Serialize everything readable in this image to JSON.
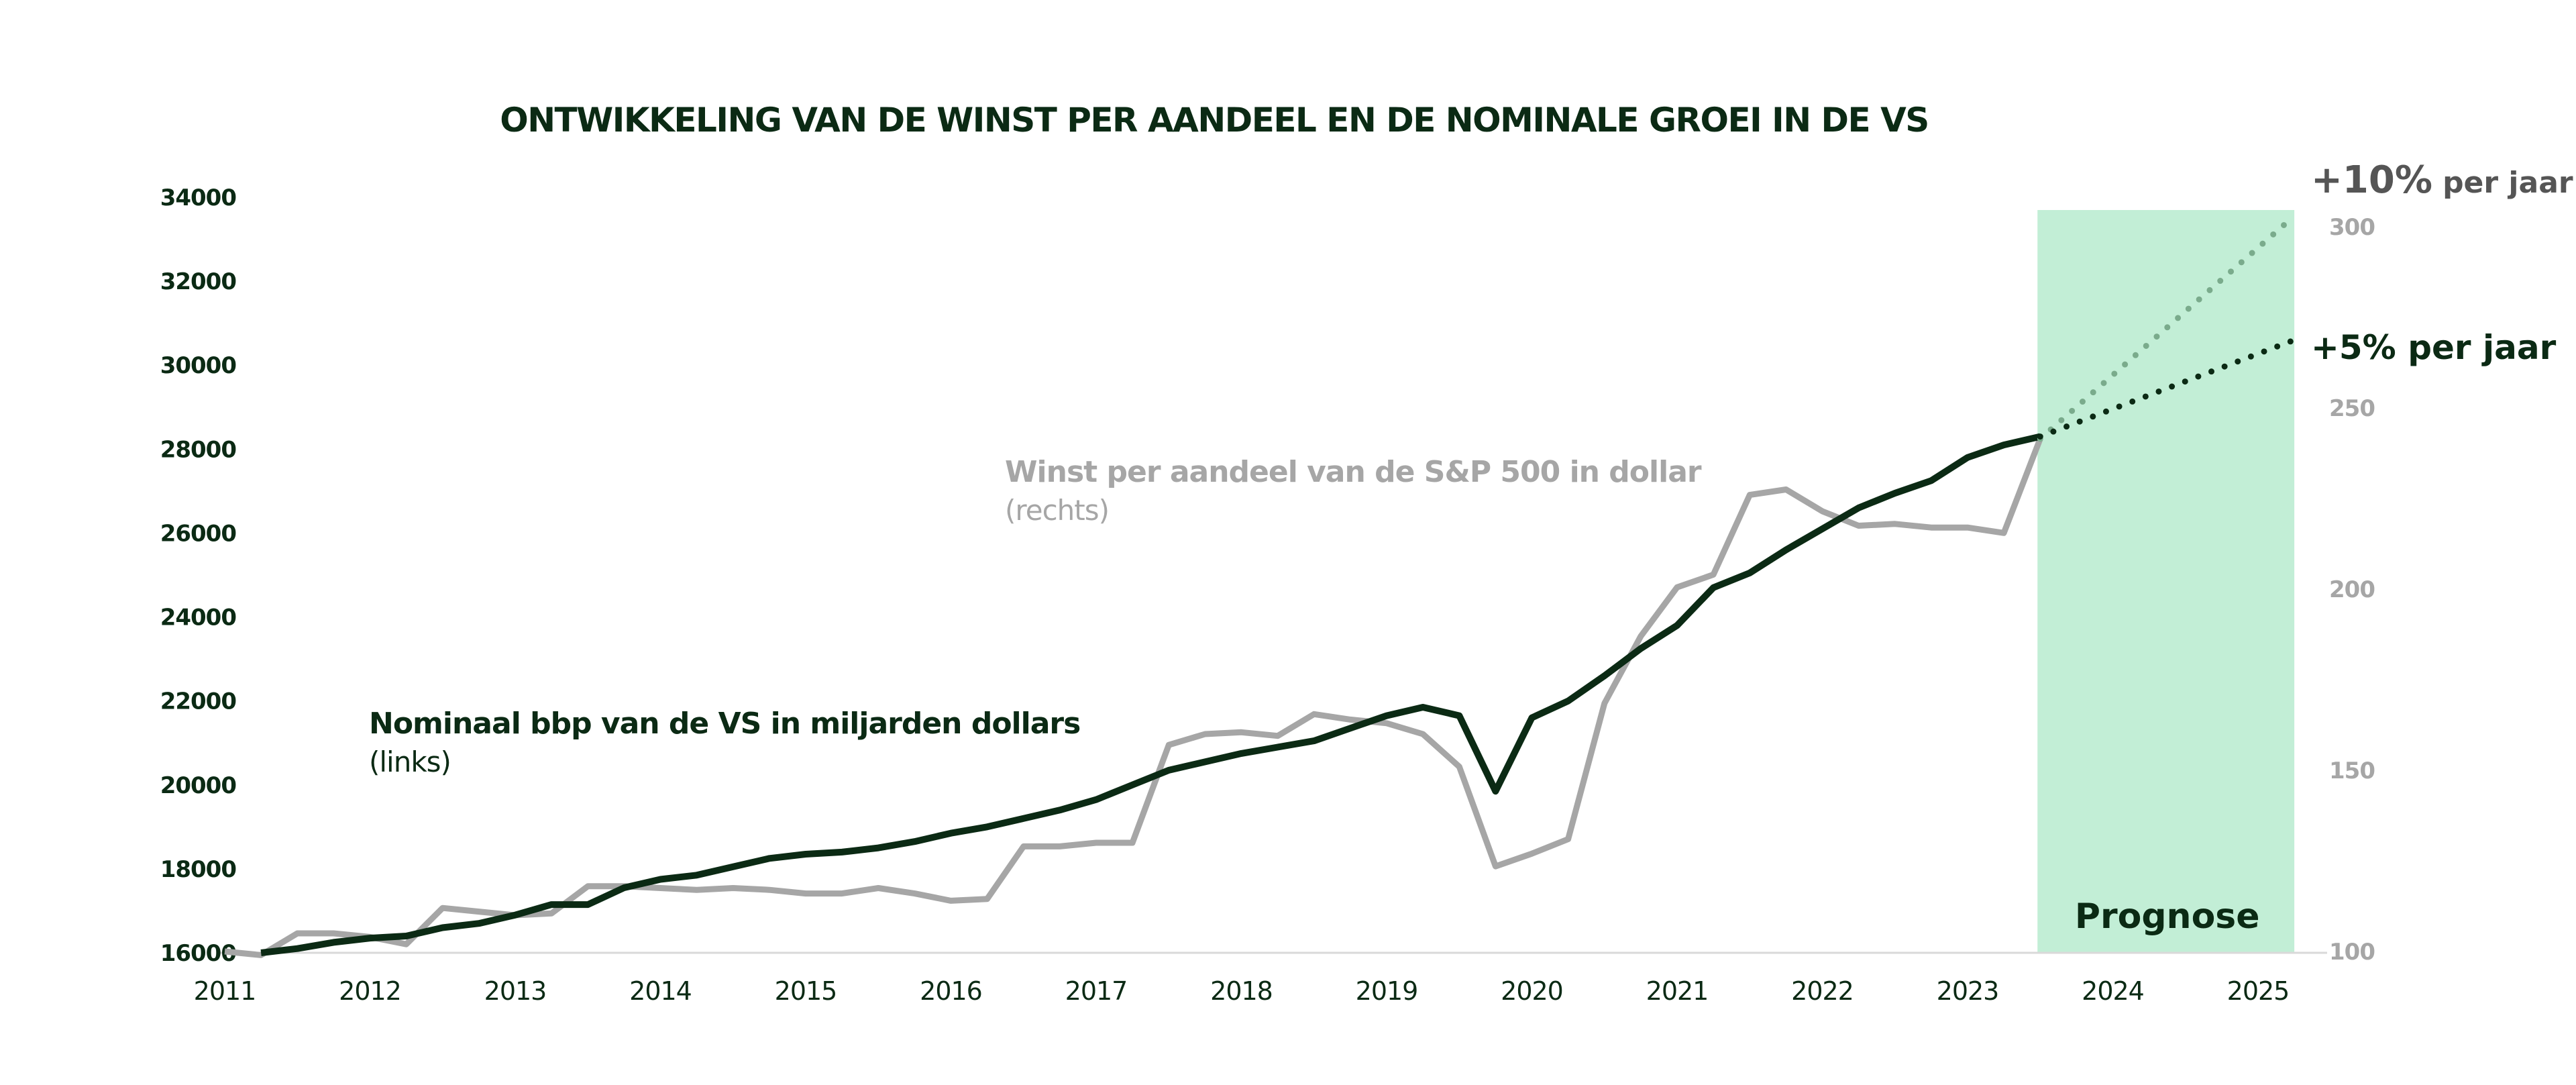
{
  "chart_data": {
    "type": "line",
    "title": "ONTWIKKELING VAN DE WINST PER AANDEEL EN DE NOMINALE GROEI IN DE VS",
    "x_ticks": [
      "2011",
      "2012",
      "2013",
      "2014",
      "2015",
      "2016",
      "2017",
      "2018",
      "2019",
      "2020",
      "2021",
      "2022",
      "2023",
      "2024",
      "2025"
    ],
    "xlim": [
      2011,
      2025.25
    ],
    "y_left": {
      "ticks": [
        "16000",
        "18000",
        "20000",
        "22000",
        "24000",
        "26000",
        "28000",
        "30000",
        "32000",
        "34000"
      ],
      "ylim": [
        16000,
        34000
      ]
    },
    "y_right": {
      "ticks": [
        "100",
        "150",
        "200",
        "250",
        "300"
      ],
      "ylim": [
        100,
        300
      ]
    },
    "grid": false,
    "forecast_region": {
      "x_start": 2023.5,
      "x_end": 2025.25,
      "label": "Prognose",
      "color": "#c2eed6"
    },
    "series": [
      {
        "name": "Nominaal bbp van de VS in miljarden dollars",
        "sub": "(links)",
        "axis": "left",
        "color": "#0b2a14",
        "x": [
          2011.25,
          2011.5,
          2011.75,
          2012,
          2012.25,
          2012.5,
          2012.75,
          2013,
          2013.25,
          2013.5,
          2013.75,
          2014,
          2014.25,
          2014.5,
          2014.75,
          2015,
          2015.25,
          2015.5,
          2015.75,
          2016,
          2016.25,
          2016.5,
          2016.75,
          2017,
          2017.25,
          2017.5,
          2017.75,
          2018,
          2018.25,
          2018.5,
          2018.75,
          2019,
          2019.25,
          2019.5,
          2019.75,
          2020,
          2020.25,
          2020.5,
          2020.75,
          2021,
          2021.25,
          2021.5,
          2021.75,
          2022,
          2022.25,
          2022.5,
          2022.75,
          2023,
          2023.25,
          2023.5
        ],
        "values": [
          16000,
          16100,
          16250,
          16350,
          16400,
          16600,
          16700,
          16900,
          17150,
          17150,
          17550,
          17750,
          17850,
          18050,
          18250,
          18350,
          18400,
          18500,
          18650,
          18850,
          19000,
          19200,
          19400,
          19650,
          20000,
          20350,
          20550,
          20750,
          20900,
          21050,
          21350,
          21650,
          21850,
          21650,
          19850,
          21600,
          22000,
          22600,
          23250,
          23800,
          24700,
          25050,
          25600,
          26100,
          26600,
          26950,
          27250,
          27800,
          28100,
          28300
        ]
      },
      {
        "name": "Winst per aandeel van de S&P 500 in dollar",
        "sub": "(rechts)",
        "axis": "right",
        "color": "#a6a6a6",
        "x": [
          2011,
          2011.25,
          2011.5,
          2011.75,
          2012,
          2012.25,
          2012.5,
          2012.75,
          2013,
          2013.25,
          2013.5,
          2013.75,
          2014,
          2014.25,
          2014.5,
          2014.75,
          2015,
          2015.25,
          2015.5,
          2015.75,
          2016,
          2016.25,
          2016.5,
          2016.75,
          2017,
          2017.25,
          2017.5,
          2017.75,
          2018,
          2018.25,
          2018.5,
          2018.75,
          2019,
          2019.25,
          2019.5,
          2019.75,
          2020,
          2020.25,
          2020.5,
          2020.75,
          2021,
          2021.25,
          2021.5,
          2021.75,
          2022,
          2022.25,
          2022.5,
          2022.75,
          2023,
          2023.25,
          2023.5
        ],
        "values": [
          100,
          99,
          105,
          105,
          104,
          102,
          112,
          111,
          110,
          110.5,
          118,
          118,
          117.5,
          117,
          117.5,
          117,
          116,
          116,
          117.5,
          116,
          114,
          114.5,
          129,
          129,
          130,
          130,
          157,
          160,
          160.5,
          159.5,
          165.5,
          164,
          163,
          160,
          151,
          123.5,
          127,
          131,
          168.5,
          187,
          200.5,
          204,
          226,
          227.5,
          221.5,
          217.5,
          218,
          217,
          217,
          215.5,
          241.5
        ]
      },
      {
        "name": "+5% per jaar",
        "axis": "left",
        "style": "dotted",
        "color": "#0b2a14",
        "x": [
          2023.5,
          2025.25
        ],
        "values": [
          28300,
          30600
        ]
      },
      {
        "name": "+10% per jaar",
        "axis": "right",
        "style": "dotted",
        "color": "#7aab8c",
        "x": [
          2023.5,
          2025.25
        ],
        "values": [
          241.5,
          303
        ]
      }
    ],
    "annotations": [
      {
        "text_big": "+10%",
        "text_small": "per jaar",
        "color": "#555555"
      },
      {
        "text_big": "+5% per jaar",
        "color": "#0b2a14"
      }
    ]
  }
}
